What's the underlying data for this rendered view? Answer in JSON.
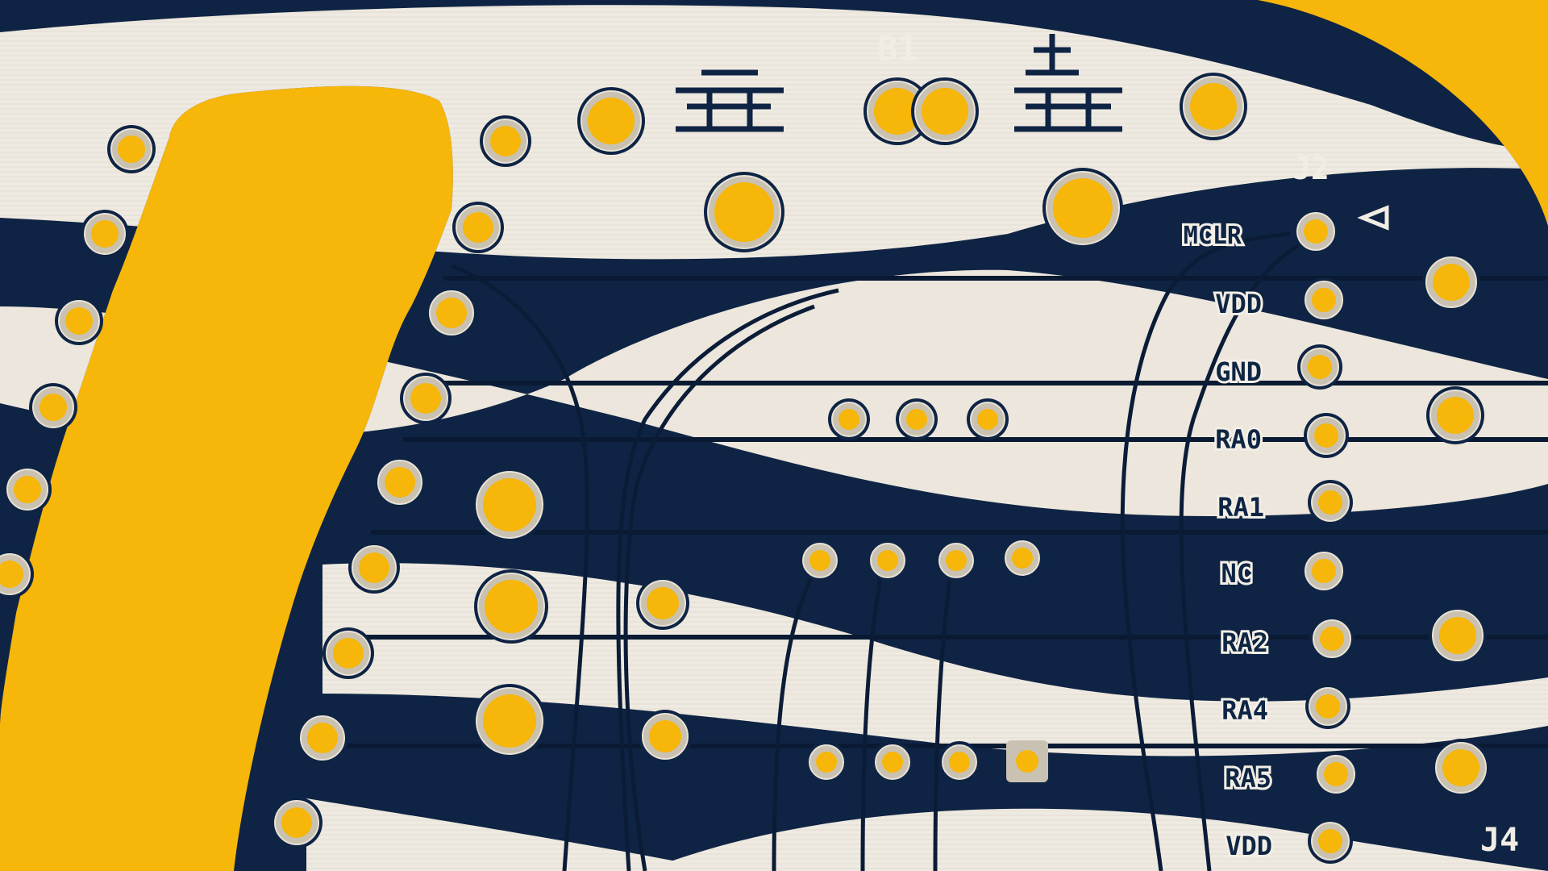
{
  "board": {
    "colors": {
      "background": "#f6b60a",
      "soldermask": "#0f2444",
      "silkscreen": "#f1ede5",
      "pad_ring": "#c9c2b2",
      "drill": "#f6b60a"
    },
    "designators": {
      "battery": "B1",
      "programming_header": "J2",
      "second_header": "J4"
    },
    "pin1_marker_icon": "triangle-left-icon",
    "battery_symbols": [
      "battery-negative-icon",
      "battery-positive-icon"
    ],
    "j2_pins": [
      {
        "label": "MCLR"
      },
      {
        "label": "VDD"
      },
      {
        "label": "GND"
      },
      {
        "label": "RA0"
      },
      {
        "label": "RA1"
      },
      {
        "label": "NC"
      },
      {
        "label": "RA2"
      },
      {
        "label": "RA4"
      },
      {
        "label": "RA5"
      },
      {
        "label": "VDD"
      }
    ]
  }
}
